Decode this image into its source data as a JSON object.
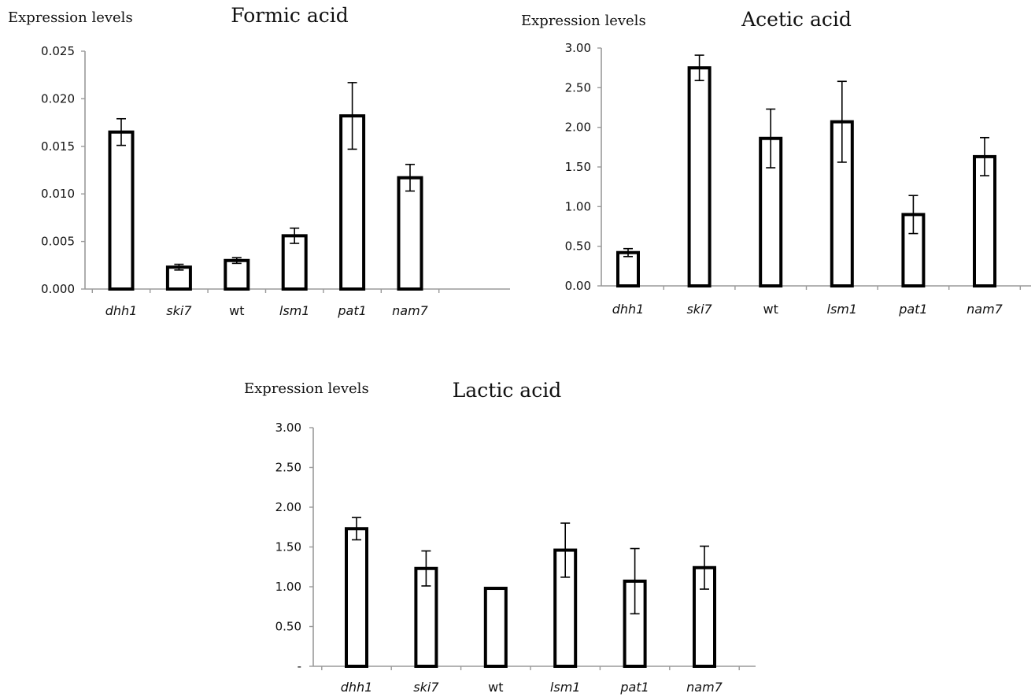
{
  "chart_data": [
    {
      "type": "bar",
      "title": "Formic acid",
      "ylabel": "Expression levels",
      "xlabel": "",
      "categories": [
        "dhh1",
        "ski7",
        "wt",
        "lsm1",
        "pat1",
        "nam7"
      ],
      "category_italic": [
        true,
        true,
        false,
        true,
        true,
        true
      ],
      "values": [
        0.0165,
        0.0023,
        0.003,
        0.0056,
        0.0182,
        0.0117
      ],
      "errors": [
        0.0014,
        0.0003,
        0.0003,
        0.0008,
        0.0035,
        0.0014
      ],
      "ylim": [
        0,
        0.025
      ],
      "yticks": [
        0,
        0.005,
        0.01,
        0.015,
        0.02,
        0.025
      ],
      "ytick_labels": [
        "0.000",
        "0.005",
        "0.010",
        "0.015",
        "0.020",
        "0.025"
      ],
      "grid": false
    },
    {
      "type": "bar",
      "title": "Acetic acid",
      "ylabel": "Expression levels",
      "xlabel": "",
      "categories": [
        "dhh1",
        "ski7",
        "wt",
        "lsm1",
        "pat1",
        "nam7"
      ],
      "category_italic": [
        true,
        true,
        false,
        true,
        true,
        true
      ],
      "values": [
        0.42,
        2.75,
        1.86,
        2.07,
        0.9,
        1.63
      ],
      "errors": [
        0.05,
        0.16,
        0.37,
        0.51,
        0.24,
        0.24
      ],
      "ylim": [
        0,
        3.0
      ],
      "yticks": [
        0,
        0.5,
        1.0,
        1.5,
        2.0,
        2.5,
        3.0
      ],
      "ytick_labels": [
        "0.00",
        "0.50",
        "1.00",
        "1.50",
        "2.00",
        "2.50",
        "3.00"
      ],
      "grid": false
    },
    {
      "type": "bar",
      "title": "Lactic acid",
      "ylabel": "Expression levels",
      "xlabel": "",
      "categories": [
        "dhh1",
        "ski7",
        "wt",
        "lsm1",
        "pat1",
        "nam7"
      ],
      "category_italic": [
        true,
        true,
        false,
        true,
        true,
        true
      ],
      "values": [
        1.73,
        1.23,
        0.98,
        1.46,
        1.07,
        1.24
      ],
      "errors": [
        0.14,
        0.22,
        0,
        0.34,
        0.41,
        0.27
      ],
      "ylim": [
        0,
        3.0
      ],
      "yticks": [
        0,
        0.5,
        1.0,
        1.5,
        2.0,
        2.5,
        3.0
      ],
      "ytick_labels": [
        "-",
        "0.50",
        "1.00",
        "1.50",
        "2.00",
        "2.50",
        "3.00"
      ],
      "grid": false
    }
  ]
}
